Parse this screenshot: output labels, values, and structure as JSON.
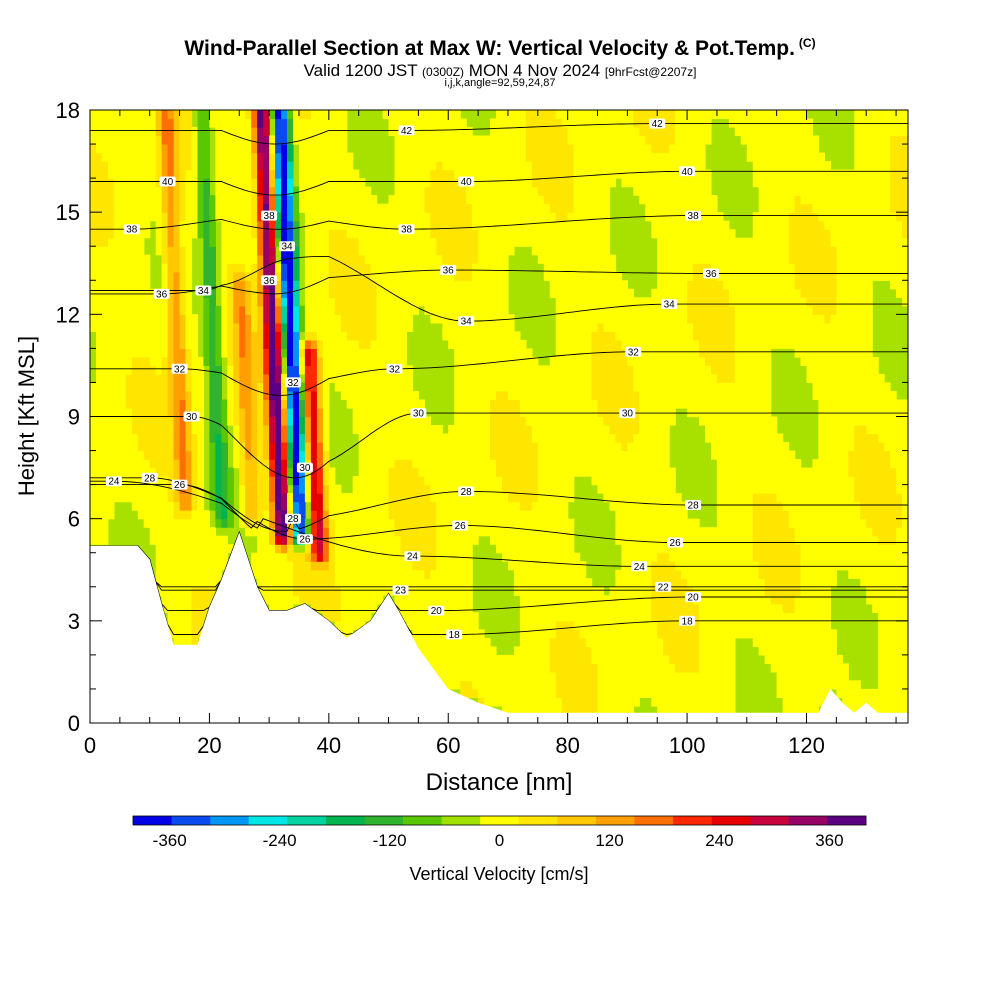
{
  "header": {
    "title_main": "Wind-Parallel Section at Max W: Vertical Velocity & Pot.Temp.",
    "title_mark": "(C)",
    "valid_a": "Valid 1200 JST",
    "valid_b": "(0300Z)",
    "valid_c": "MON 4 Nov 2024",
    "valid_d": "[9hrFcst@2207z]",
    "indices": "i,j,k,angle=92,59,24,87"
  },
  "chart_data": {
    "type": "heatmap",
    "xlabel": "Distance [nm]",
    "ylabel": "Height [Kft MSL]",
    "xlim": [
      0,
      137
    ],
    "ylim": [
      0,
      18
    ],
    "xticks": [
      0,
      20,
      40,
      60,
      80,
      100,
      120
    ],
    "yticks": [
      0,
      3,
      6,
      9,
      12,
      15,
      18
    ],
    "colorbar": {
      "label": "Vertical Velocity [cm/s]",
      "range": [
        -400,
        400
      ],
      "tick_values": [
        -360,
        -240,
        -120,
        0,
        120,
        240,
        360
      ],
      "colors": [
        "#0000e6",
        "#0a4bf0",
        "#0096f5",
        "#00e6e6",
        "#00d2a0",
        "#00b450",
        "#30b430",
        "#5ac800",
        "#a0e100",
        "#ffff00",
        "#ffe600",
        "#ffc800",
        "#ffa000",
        "#ff6e00",
        "#ff2800",
        "#e60000",
        "#c8003c",
        "#960064",
        "#5a0080"
      ]
    },
    "vertical_velocity_features": [
      {
        "x": 31,
        "y_bottom": 5.5,
        "y_top": 18,
        "peak_cm_s": 400
      },
      {
        "x": 34,
        "y_bottom": 5.5,
        "y_top": 18,
        "peak_cm_s": -400
      },
      {
        "x": 37,
        "y_bottom": 5.0,
        "y_top": 11,
        "peak_cm_s": 280
      },
      {
        "x": 15,
        "y_bottom": 6.5,
        "y_top": 18,
        "peak_cm_s": 150
      },
      {
        "x": 21,
        "y_bottom": 6.0,
        "y_top": 18,
        "peak_cm_s": -130
      },
      {
        "x": 26,
        "y_bottom": 6.0,
        "y_top": 13,
        "peak_cm_s": 120
      }
    ],
    "terrain": {
      "x": [
        0,
        8,
        10,
        12,
        14,
        18,
        20,
        22,
        25,
        28,
        30,
        33,
        36,
        40,
        43,
        47,
        50,
        52,
        55,
        60,
        65,
        70,
        80,
        100,
        110,
        122,
        124,
        126,
        128,
        130,
        132,
        134,
        137
      ],
      "height_kft": [
        5.2,
        5.2,
        4.8,
        3.5,
        2.3,
        2.3,
        3.4,
        4.2,
        5.6,
        4.0,
        3.3,
        3.3,
        3.5,
        3.0,
        2.5,
        3.0,
        3.8,
        3.2,
        2.2,
        1.0,
        0.6,
        0.3,
        0.3,
        0.3,
        0.3,
        0.3,
        1.0,
        0.6,
        0.3,
        0.6,
        0.3,
        0.3,
        0.3
      ]
    },
    "theta_contours": [
      {
        "level": "42",
        "labels": [
          {
            "x": 53,
            "y": 17.4
          },
          {
            "x": 95,
            "y": 17.6
          }
        ]
      },
      {
        "level": "40",
        "labels": [
          {
            "x": 13,
            "y": 15.9
          },
          {
            "x": 63,
            "y": 15.9
          },
          {
            "x": 100,
            "y": 16.2
          }
        ]
      },
      {
        "level": "38",
        "labels": [
          {
            "x": 7,
            "y": 14.5
          },
          {
            "x": 30,
            "y": 14.9
          },
          {
            "x": 53,
            "y": 14.5
          },
          {
            "x": 101,
            "y": 14.9
          }
        ]
      },
      {
        "level": "36",
        "labels": [
          {
            "x": 12,
            "y": 12.6
          },
          {
            "x": 30,
            "y": 13.0
          },
          {
            "x": 60,
            "y": 13.3
          },
          {
            "x": 104,
            "y": 13.2
          }
        ]
      },
      {
        "level": "34",
        "labels": [
          {
            "x": 19,
            "y": 12.7
          },
          {
            "x": 33,
            "y": 14.0
          },
          {
            "x": 63,
            "y": 11.8
          },
          {
            "x": 97,
            "y": 12.3
          }
        ]
      },
      {
        "level": "32",
        "labels": [
          {
            "x": 15,
            "y": 10.4
          },
          {
            "x": 34,
            "y": 10.0
          },
          {
            "x": 51,
            "y": 10.4
          },
          {
            "x": 91,
            "y": 10.9
          }
        ]
      },
      {
        "level": "30",
        "labels": [
          {
            "x": 17,
            "y": 9.0
          },
          {
            "x": 36,
            "y": 7.5
          },
          {
            "x": 55,
            "y": 9.1
          },
          {
            "x": 90,
            "y": 9.1
          }
        ]
      },
      {
        "level": "28",
        "labels": [
          {
            "x": 10,
            "y": 7.2
          },
          {
            "x": 34,
            "y": 6.0
          },
          {
            "x": 63,
            "y": 6.8
          },
          {
            "x": 101,
            "y": 6.4
          }
        ]
      },
      {
        "level": "26",
        "labels": [
          {
            "x": 15,
            "y": 7.0
          },
          {
            "x": 36,
            "y": 5.4
          },
          {
            "x": 62,
            "y": 5.8
          },
          {
            "x": 98,
            "y": 5.3
          }
        ]
      },
      {
        "level": "24",
        "labels": [
          {
            "x": 4,
            "y": 7.1
          },
          {
            "x": 54,
            "y": 4.9
          },
          {
            "x": 92,
            "y": 4.6
          }
        ]
      },
      {
        "level": "23",
        "labels": [
          {
            "x": 52,
            "y": 3.9
          }
        ]
      },
      {
        "level": "22",
        "labels": [
          {
            "x": 96,
            "y": 4.0
          }
        ]
      },
      {
        "level": "20",
        "labels": [
          {
            "x": 58,
            "y": 3.3
          },
          {
            "x": 101,
            "y": 3.7
          }
        ]
      },
      {
        "level": "18",
        "labels": [
          {
            "x": 61,
            "y": 2.6
          },
          {
            "x": 100,
            "y": 3.0
          }
        ]
      }
    ]
  }
}
